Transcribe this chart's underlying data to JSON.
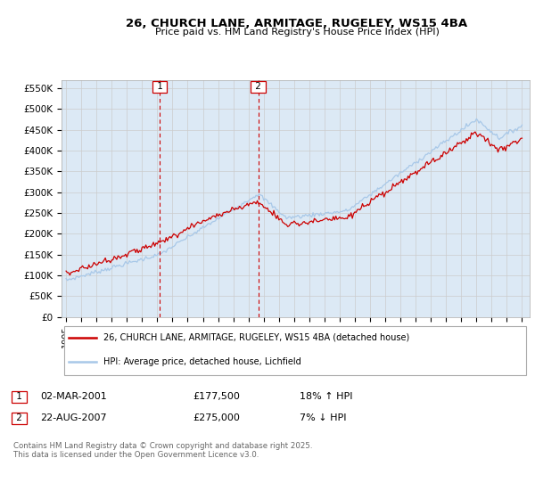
{
  "title": "26, CHURCH LANE, ARMITAGE, RUGELEY, WS15 4BA",
  "subtitle": "Price paid vs. HM Land Registry's House Price Index (HPI)",
  "ylim": [
    0,
    570000
  ],
  "yticks": [
    0,
    50000,
    100000,
    150000,
    200000,
    250000,
    300000,
    350000,
    400000,
    450000,
    500000,
    550000
  ],
  "ytick_labels": [
    "£0",
    "£50K",
    "£100K",
    "£150K",
    "£200K",
    "£250K",
    "£300K",
    "£350K",
    "£400K",
    "£450K",
    "£500K",
    "£550K"
  ],
  "hpi_color": "#a8c8e8",
  "price_color": "#cc0000",
  "vline_color": "#cc0000",
  "background_color": "#dce9f5",
  "transaction1_x": 2001.17,
  "transaction1_price": 177500,
  "transaction2_x": 2007.64,
  "transaction2_price": 275000,
  "transaction1_date": "02-MAR-2001",
  "transaction1_note": "18% ↑ HPI",
  "transaction2_date": "22-AUG-2007",
  "transaction2_note": "7% ↓ HPI",
  "legend_line1": "26, CHURCH LANE, ARMITAGE, RUGELEY, WS15 4BA (detached house)",
  "legend_line2": "HPI: Average price, detached house, Lichfield",
  "footer": "Contains HM Land Registry data © Crown copyright and database right 2025.\nThis data is licensed under the Open Government Licence v3.0.",
  "xstart_year": 1995,
  "xend_year": 2025
}
